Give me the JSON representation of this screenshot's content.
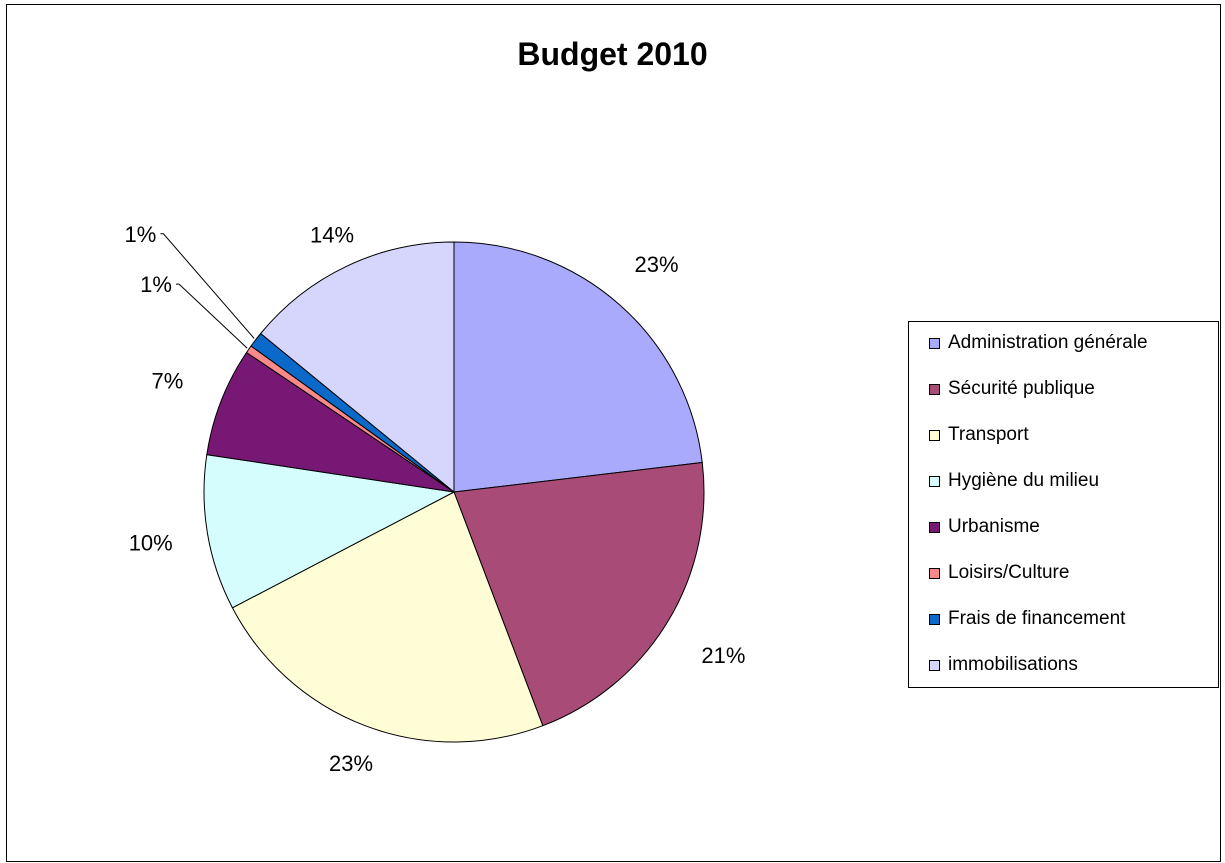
{
  "chart_data": {
    "type": "pie",
    "title": "Budget 2010",
    "slices": [
      {
        "label": "Administration générale",
        "value": 23,
        "value_label": "23%",
        "color": "#aaaafd"
      },
      {
        "label": "Sécurité publique",
        "value": 21,
        "value_label": "21%",
        "color": "#a84b77"
      },
      {
        "label": "Transport",
        "value": 23,
        "value_label": "23%",
        "color": "#fffdd5"
      },
      {
        "label": "Hygiène du milieu",
        "value": 10,
        "value_label": "10%",
        "color": "#d6fdfd"
      },
      {
        "label": "Urbanisme",
        "value": 7,
        "value_label": "7%",
        "color": "#771875"
      },
      {
        "label": "Loisirs/Culture",
        "value": 0.5,
        "value_label": "1%",
        "color": "#fa8a8a"
      },
      {
        "label": "Frais de financement",
        "value": 1,
        "value_label": "1%",
        "color": "#0b6ac9"
      },
      {
        "label": "immobilisations",
        "value": 14,
        "value_label": "14%",
        "color": "#d6d6fd"
      }
    ],
    "start_angle": "12 o'clock",
    "direction": "clockwise",
    "legend_position": "right",
    "grid": false
  }
}
